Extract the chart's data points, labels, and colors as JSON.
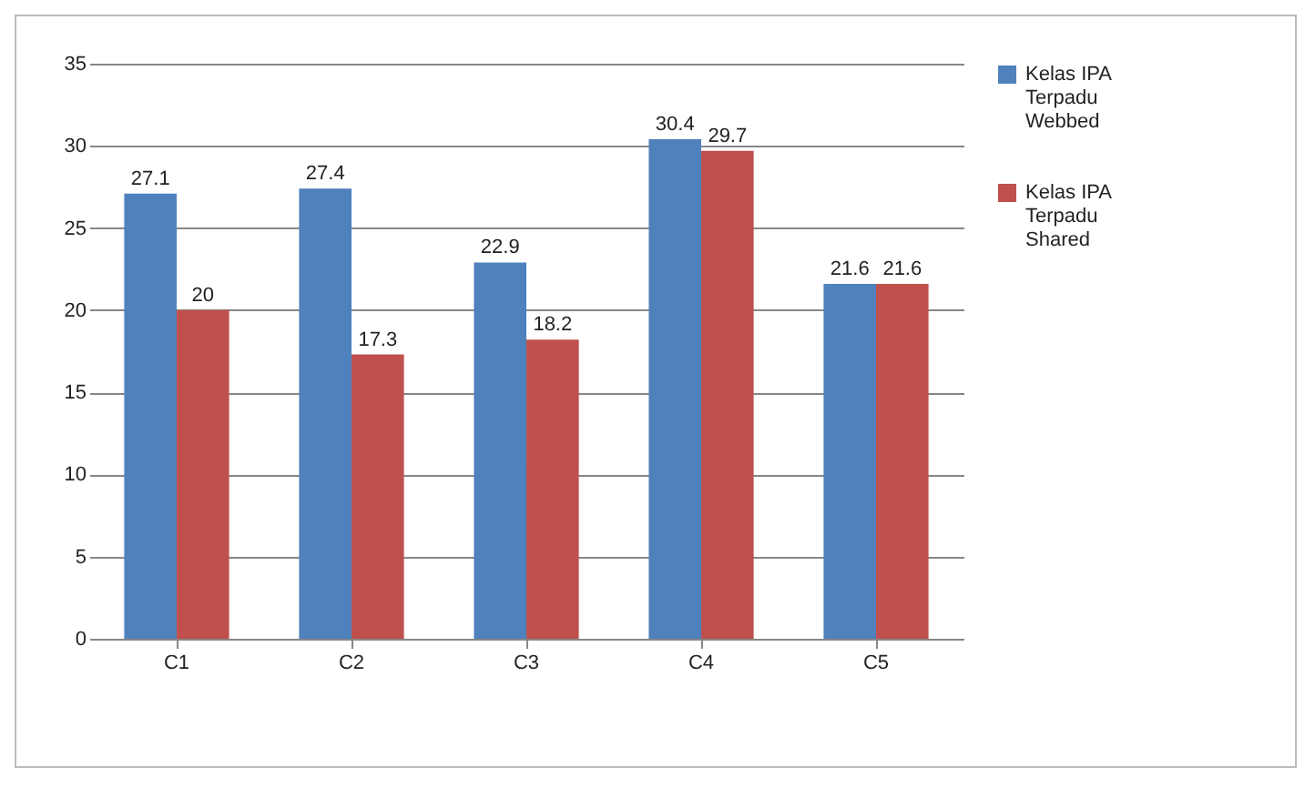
{
  "chart_data": {
    "type": "bar",
    "categories": [
      "C1",
      "C2",
      "C3",
      "C4",
      "C5"
    ],
    "series": [
      {
        "name": "Kelas IPA Terpadu Webbed",
        "color": "#4f81bd",
        "values": [
          27.1,
          27.4,
          22.9,
          30.4,
          21.6
        ]
      },
      {
        "name": "Kelas IPA Terpadu Shared",
        "color": "#c0504d",
        "values": [
          20,
          17.3,
          18.2,
          29.7,
          21.6
        ]
      }
    ],
    "ylim": [
      0,
      35
    ],
    "yticks": [
      0,
      5,
      10,
      15,
      20,
      25,
      30,
      35
    ],
    "grid": "y",
    "legend": "right",
    "data_labels": true
  }
}
